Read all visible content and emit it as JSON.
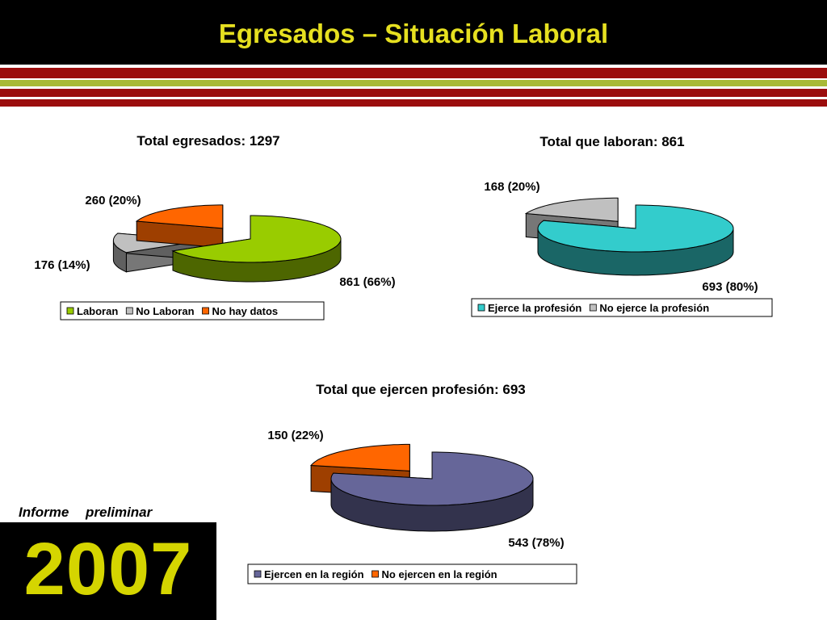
{
  "slide": {
    "title": "Egresados – Situación Laboral",
    "report_label": "Informe   preliminar",
    "year": "2007",
    "colors": {
      "title_text": "#e6e020",
      "header_bg": "#000000",
      "stripe_red": "#9b0d0d",
      "stripe_green": "#a8b936",
      "year_text": "#d5d500"
    }
  },
  "chart_data": [
    {
      "type": "pie",
      "style": "3d-exploded",
      "title": "Total egresados: 1297",
      "slices": [
        {
          "name": "Laboran",
          "value": 861,
          "label": "861 (66%)",
          "color": "#99cc00"
        },
        {
          "name": "No Laboran",
          "value": 176,
          "label": "176 (14%)",
          "color": "#c0c0c0"
        },
        {
          "name": "No hay datos",
          "value": 260,
          "label": "260 (20%)",
          "color": "#ff6600"
        }
      ],
      "exploded": [
        1,
        2
      ],
      "legend": "bottom"
    },
    {
      "type": "pie",
      "style": "3d-exploded",
      "title": "Total que laboran: 861",
      "slices": [
        {
          "name": "Ejerce la profesión",
          "value": 693,
          "label": "693 (80%)",
          "color": "#33cccc"
        },
        {
          "name": "No ejerce la profesión",
          "value": 168,
          "label": "168 (20%)",
          "color": "#c0c0c0"
        }
      ],
      "exploded": [
        1
      ],
      "legend": "bottom"
    },
    {
      "type": "pie",
      "style": "3d-exploded",
      "title": "Total que ejercen profesión: 693",
      "slices": [
        {
          "name": "Ejercen en la región",
          "value": 543,
          "label": "543 (78%)",
          "color": "#666699"
        },
        {
          "name": "No ejercen en la región",
          "value": 150,
          "label": "150 (22%)",
          "color": "#ff6600"
        }
      ],
      "exploded": [
        1
      ],
      "legend": "bottom"
    }
  ]
}
